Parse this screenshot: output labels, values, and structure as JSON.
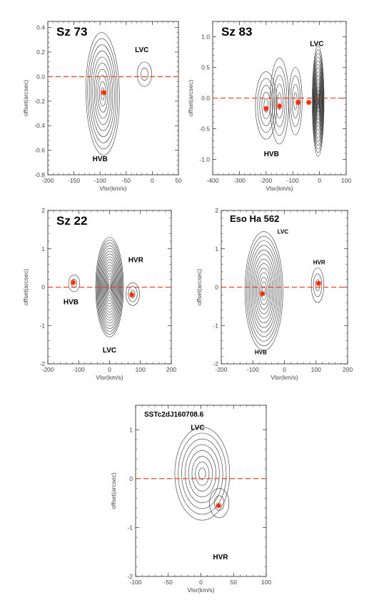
{
  "chart_data": [
    {
      "type": "contour",
      "title": "Sz 73",
      "xlabel": "Vlsr(km/s)",
      "ylabel": "offset(arcsec)",
      "xlim": [
        -200,
        50
      ],
      "ylim": [
        -0.8,
        0.45
      ],
      "xticks": [
        -200,
        -150,
        -100,
        -50,
        0,
        50
      ],
      "yticks": [
        0.4,
        0.2,
        0.0,
        -0.2,
        -0.4,
        -0.6,
        -0.8
      ],
      "xtick_labels": [
        "-200",
        "-150",
        "-100",
        "-50",
        "0",
        "50"
      ],
      "ytick_labels": [
        "0.4",
        "0.2",
        "0.0",
        "-0.2",
        "-0.4",
        "-0.6",
        "-0.8"
      ],
      "zero_line": 0,
      "markers": [
        {
          "x": -93,
          "y": -0.13
        }
      ],
      "labels": [
        {
          "text": "LVC",
          "x": -20,
          "y": 0.2
        },
        {
          "text": "HVB",
          "x": -100,
          "y": -0.69
        }
      ],
      "components": [
        {
          "x": -95,
          "y": -0.14,
          "sx": 32,
          "sy": 0.5,
          "levels": 10,
          "tilt": -0.5
        },
        {
          "x": -15,
          "y": 0.02,
          "sx": 14,
          "sy": 0.1,
          "levels": 2,
          "tilt": 0
        }
      ]
    },
    {
      "type": "contour",
      "title": "Sz 83",
      "xlabel": "Vlsr(km/s)",
      "ylabel": "offset(arcsec)",
      "xlim": [
        -400,
        100
      ],
      "ylim": [
        -1.25,
        1.25
      ],
      "xticks": [
        -400,
        -300,
        -200,
        -100,
        0,
        100
      ],
      "yticks": [
        1.0,
        0.5,
        0.0,
        -0.5,
        -1.0
      ],
      "xtick_labels": [
        "-400",
        "-300",
        "-200",
        "-100",
        "0",
        "100"
      ],
      "ytick_labels": [
        "1.0",
        "0.5",
        "0.0",
        "-0.5",
        "-1.0"
      ],
      "zero_line": 0,
      "markers": [
        {
          "x": -200,
          "y": -0.17
        },
        {
          "x": -150,
          "y": -0.13
        },
        {
          "x": -80,
          "y": -0.07
        },
        {
          "x": -40,
          "y": -0.07
        }
      ],
      "labels": [
        {
          "text": "LVC",
          "x": -10,
          "y": 0.85
        },
        {
          "text": "HVB",
          "x": -180,
          "y": -0.95
        }
      ],
      "components": [
        {
          "x": -200,
          "y": -0.12,
          "sx": 40,
          "sy": 0.55,
          "levels": 5,
          "tilt": 0
        },
        {
          "x": -150,
          "y": -0.05,
          "sx": 35,
          "sy": 0.7,
          "levels": 5,
          "tilt": 0
        },
        {
          "x": -90,
          "y": -0.05,
          "sx": 25,
          "sy": 0.55,
          "levels": 4,
          "tilt": 0
        },
        {
          "x": -5,
          "y": -0.05,
          "sx": 22,
          "sy": 0.9,
          "levels": 15,
          "tilt": 0
        }
      ]
    },
    {
      "type": "contour",
      "title": "Sz 22",
      "xlabel": "Vlsr(km/s)",
      "ylabel": "offset(arcsec)",
      "xlim": [
        -200,
        200
      ],
      "ylim": [
        -2,
        2
      ],
      "xticks": [
        -200,
        -100,
        0,
        100,
        200
      ],
      "yticks": [
        2,
        1,
        0,
        -1,
        -2
      ],
      "xtick_labels": [
        "-200",
        "-100",
        "0",
        "100",
        "200"
      ],
      "ytick_labels": [
        "2",
        "1",
        "0",
        "-1",
        "-2"
      ],
      "zero_line": 0,
      "markers": [
        {
          "x": -118,
          "y": 0.12
        },
        {
          "x": 72,
          "y": -0.2
        }
      ],
      "labels": [
        {
          "text": "HVR",
          "x": 85,
          "y": 0.65
        },
        {
          "text": "HVB",
          "x": -125,
          "y": -0.45
        },
        {
          "text": "LVC",
          "x": 0,
          "y": -1.7
        }
      ],
      "components": [
        {
          "x": 0,
          "y": 0,
          "sx": 45,
          "sy": 1.3,
          "levels": 18,
          "tilt": 0
        },
        {
          "x": -115,
          "y": 0.1,
          "sx": 18,
          "sy": 0.22,
          "levels": 2,
          "tilt": 0
        },
        {
          "x": 75,
          "y": -0.18,
          "sx": 22,
          "sy": 0.3,
          "levels": 3,
          "tilt": 0
        }
      ]
    },
    {
      "type": "contour",
      "title": "Eso Ha 562",
      "xlabel": "Vlsr(km/s)",
      "ylabel": "offset(arcsec)",
      "xlim": [
        -200,
        200
      ],
      "ylim": [
        -2,
        2
      ],
      "xticks": [
        -200,
        -100,
        0,
        100,
        200
      ],
      "yticks": [
        2,
        1,
        0,
        -1,
        -2
      ],
      "xtick_labels": [
        "-200",
        "-100",
        "0",
        "100",
        "200"
      ],
      "ytick_labels": [
        "2",
        "1",
        "0",
        "-1",
        "-2"
      ],
      "zero_line": 0,
      "markers": [
        {
          "x": -70,
          "y": -0.17
        },
        {
          "x": 108,
          "y": 0.1
        }
      ],
      "labels": [
        {
          "text": "LVC",
          "x": -5,
          "y": 1.4
        },
        {
          "text": "HVR",
          "x": 110,
          "y": 0.6
        },
        {
          "text": "HVB",
          "x": -75,
          "y": -1.75
        }
      ],
      "components": [
        {
          "x": -65,
          "y": -0.1,
          "sx": 60,
          "sy": 1.55,
          "levels": 13,
          "tilt": 0.003
        },
        {
          "x": 105,
          "y": 0.05,
          "sx": 20,
          "sy": 0.45,
          "levels": 3,
          "tilt": 0
        }
      ]
    },
    {
      "type": "contour",
      "title": "SSTc2dJ160708.6",
      "xlabel": "Vlsr(km/s)",
      "ylabel": "offset(arcsec)",
      "xlim": [
        -100,
        100
      ],
      "ylim": [
        -2,
        1.5
      ],
      "xticks": [
        -100,
        -50,
        0,
        50,
        100
      ],
      "yticks": [
        1,
        0,
        -1,
        -2
      ],
      "xtick_labels": [
        "-100",
        "-50",
        "0",
        "50",
        "100"
      ],
      "ytick_labels": [
        "1",
        "0",
        "-1",
        "-2"
      ],
      "zero_line": 0,
      "markers": [
        {
          "x": 27,
          "y": -0.55
        }
      ],
      "labels": [
        {
          "text": "LVC",
          "x": -5,
          "y": 1.0
        },
        {
          "text": "HVR",
          "x": 30,
          "y": -1.65
        }
      ],
      "components": [
        {
          "x": 2,
          "y": 0.1,
          "sx": 42,
          "sy": 0.95,
          "levels": 8,
          "tilt": -0.015
        },
        {
          "x": 28,
          "y": -0.5,
          "sx": 15,
          "sy": 0.3,
          "levels": 2,
          "tilt": 0
        }
      ]
    }
  ]
}
